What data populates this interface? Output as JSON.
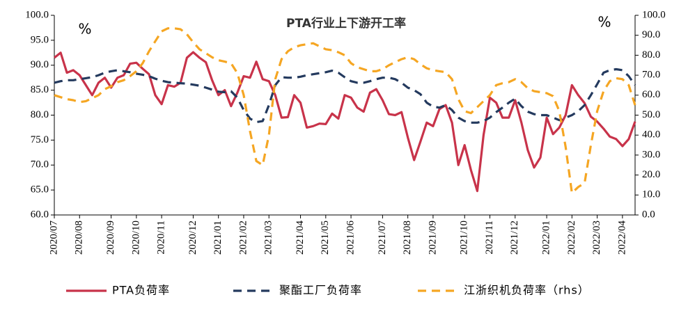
{
  "chart_data": {
    "type": "line",
    "title": "PTA行业上下游开工率",
    "annotations": [
      "%",
      "%"
    ],
    "categories": [
      "2020/07",
      null,
      null,
      null,
      "2020/08",
      null,
      null,
      null,
      null,
      "2020/09",
      null,
      null,
      null,
      "2020/10",
      null,
      null,
      null,
      "2020/11",
      null,
      null,
      null,
      null,
      "2020/12",
      null,
      null,
      null,
      "2021/01",
      null,
      null,
      null,
      "2021/02",
      null,
      null,
      null,
      "2021/03",
      null,
      null,
      null,
      null,
      "2021/04",
      null,
      null,
      null,
      "2021/05",
      null,
      null,
      null,
      "2021/06",
      null,
      null,
      null,
      null,
      "2021/07",
      null,
      null,
      null,
      "2021/08",
      null,
      null,
      null,
      "2021/09",
      null,
      null,
      null,
      null,
      "2021/10",
      null,
      null,
      null,
      "2021/11",
      null,
      null,
      null,
      "2021/12",
      null,
      null,
      null,
      null,
      "2022/01",
      null,
      null,
      null,
      "2022/02",
      null,
      null,
      null,
      "2022/03",
      null,
      null,
      null,
      "2022/04",
      null,
      null
    ],
    "series": [
      {
        "name": "PTA负荷率",
        "color": "#c8334a",
        "style": "solid",
        "axis": "y",
        "values": [
          91.5,
          92.5,
          88.5,
          89,
          88,
          86,
          84,
          86.5,
          87.5,
          85.5,
          87.5,
          88,
          90.3,
          90.5,
          89.3,
          88.2,
          84,
          82.2,
          86,
          85.7,
          86.5,
          91.5,
          92.6,
          91.5,
          90.6,
          87,
          84,
          85,
          81.8,
          84.5,
          87.8,
          87.5,
          90.7,
          87.2,
          86.8,
          84,
          79.5,
          79.6,
          84,
          82.5,
          77.5,
          77.8,
          78.3,
          78.2,
          80.3,
          79.3,
          84,
          83.5,
          81.5,
          80.7,
          84.5,
          85.2,
          83,
          80.2,
          80,
          80.6,
          75.5,
          71,
          74.7,
          78.5,
          77.8,
          81.2,
          82,
          78.5,
          70,
          74,
          69,
          64.8,
          76,
          83.5,
          82.5,
          79.5,
          79.5,
          83,
          78.5,
          73,
          69.5,
          71.5,
          79.5,
          76.2,
          77.5,
          80,
          86,
          84,
          82.4,
          79.7,
          78.7,
          77.3,
          75.7,
          75.2,
          73.8,
          75.2,
          78.7
        ]
      },
      {
        "name": "聚酯工厂负荷率",
        "color": "#243a5e",
        "style": "dashed",
        "axis": "y",
        "values": [
          86.5,
          86.8,
          87,
          87,
          87.2,
          87.4,
          87.6,
          88,
          88.5,
          88.8,
          89,
          88.8,
          88.6,
          88.3,
          88.1,
          87.8,
          87.3,
          86.9,
          86.6,
          86.5,
          86.4,
          86.3,
          86.1,
          85.9,
          85.5,
          85.1,
          84.7,
          84.6,
          84.8,
          83.5,
          81,
          79.3,
          78.6,
          78.8,
          82,
          86,
          87.6,
          87.5,
          87.5,
          87.7,
          88,
          88.2,
          88.4,
          88.6,
          88.9,
          88.5,
          87.6,
          86.8,
          86.5,
          86.5,
          86.8,
          87.2,
          87.5,
          87.5,
          87.2,
          86.5,
          85.5,
          85,
          84.2,
          82.5,
          81.7,
          81.5,
          82,
          81,
          79.5,
          78.8,
          78.5,
          78.5,
          78.8,
          79.5,
          80.6,
          81.5,
          82.5,
          83.3,
          81.8,
          80.7,
          80.2,
          80,
          80,
          79.5,
          79,
          79.5,
          80,
          80.8,
          82,
          84,
          86.2,
          88.5,
          89,
          89.2,
          89,
          87.8,
          86
        ]
      },
      {
        "name": "江浙织机负荷率（rhs）",
        "color": "#f5a623",
        "style": "dashed",
        "axis": "y2",
        "values": [
          60,
          59,
          58,
          57.5,
          56.5,
          57,
          58.5,
          60,
          63,
          64.5,
          66.5,
          67.5,
          69.5,
          72,
          76,
          82,
          87,
          92,
          93.5,
          93.5,
          93,
          90.5,
          86.5,
          83,
          81,
          79,
          77.5,
          76.8,
          76,
          71,
          60,
          42,
          27,
          25,
          40,
          68,
          78,
          82,
          84,
          85,
          85.5,
          86,
          84.5,
          83,
          82.5,
          81.5,
          80,
          76,
          74,
          73,
          72,
          72,
          73,
          75,
          76.5,
          78,
          79,
          78,
          75.5,
          73.5,
          72.5,
          72,
          71.5,
          68,
          58,
          52,
          51,
          54,
          57,
          60,
          65,
          66,
          66.5,
          68,
          66.5,
          63.5,
          62,
          61.5,
          61,
          59.5,
          52,
          34,
          11,
          14,
          16,
          35,
          52,
          62,
          67,
          68.5,
          68,
          65,
          55
        ]
      }
    ],
    "ylim": [
      60,
      100
    ],
    "yticks": [
      {
        "value": 60,
        "label": "60.0"
      },
      {
        "value": 65,
        "label": "65.0"
      },
      {
        "value": 70,
        "label": "70.0"
      },
      {
        "value": 75,
        "label": "75.0"
      },
      {
        "value": 80,
        "label": "80.0"
      },
      {
        "value": 85,
        "label": "85.0"
      },
      {
        "value": 90,
        "label": "90.0"
      },
      {
        "value": 95,
        "label": "95.0"
      },
      {
        "value": 100,
        "label": "100.0"
      }
    ],
    "y2lim": [
      0,
      100
    ],
    "y2ticks": [
      {
        "value": 0,
        "label": "0.0"
      },
      {
        "value": 10,
        "label": "10.0"
      },
      {
        "value": 20,
        "label": "20.0"
      },
      {
        "value": 30,
        "label": "30.0"
      },
      {
        "value": 40,
        "label": "40.0"
      },
      {
        "value": 50,
        "label": "50.0"
      },
      {
        "value": 60,
        "label": "60.0"
      },
      {
        "value": 70,
        "label": "70.0"
      },
      {
        "value": 80,
        "label": "80.0"
      },
      {
        "value": 90,
        "label": "90.0"
      },
      {
        "value": 100,
        "label": "100.0"
      }
    ],
    "grid": false,
    "legend": "bottom"
  }
}
